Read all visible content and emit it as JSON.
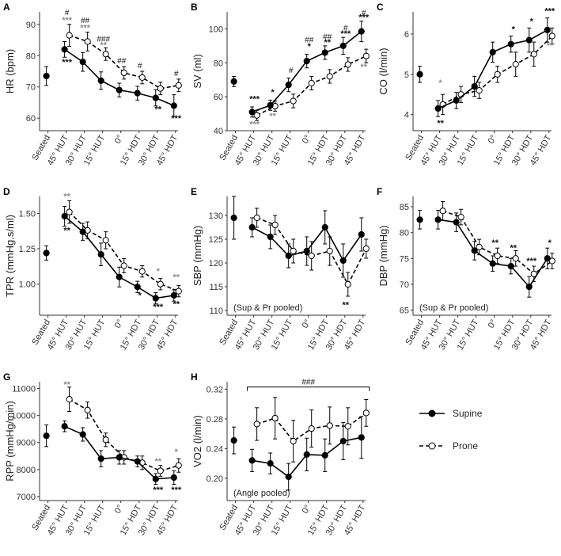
{
  "legend": {
    "supine": "Supine",
    "prone": "Prone"
  },
  "colors": {
    "supine": "#000000",
    "prone": "#ffffff",
    "line": "#000000",
    "grey_marker": "#8c8c8c"
  },
  "chart_data": [
    {
      "id": "A",
      "type": "line",
      "ylabel": "HR (bpm)",
      "categories": [
        "Seated",
        "45° HUT",
        "30° HUT",
        "15° HUT",
        "0°",
        "15° HDT",
        "30° HDT",
        "45° HDT"
      ],
      "ylim": [
        56,
        94
      ],
      "yticks": [
        60,
        70,
        80,
        90
      ],
      "series": [
        {
          "name": "Supine",
          "values": [
            73.5,
            82,
            78,
            72,
            69,
            68,
            66.5,
            64
          ],
          "err": [
            3,
            2.5,
            3,
            2.8,
            2.2,
            2.2,
            2.6,
            3.5
          ]
        },
        {
          "name": "Prone",
          "values": [
            null,
            86.5,
            84.5,
            80.5,
            74.5,
            73,
            69.5,
            70.5
          ],
          "err": [
            null,
            3.5,
            3,
            2,
            2,
            2,
            2,
            2
          ]
        }
      ],
      "annotations": [
        {
          "cat": 1,
          "text": "#",
          "kind": "hash",
          "value": 93
        },
        {
          "cat": 1,
          "text": "***",
          "kind": "grey",
          "value": 90.5
        },
        {
          "cat": 1,
          "text": "***",
          "kind": "black",
          "value": 77
        },
        {
          "cat": 2,
          "text": "##",
          "kind": "hash",
          "value": 90.5
        },
        {
          "cat": 2,
          "text": "***",
          "kind": "grey",
          "value": 88
        },
        {
          "cat": 3,
          "text": "###",
          "kind": "hash",
          "value": 84.5
        },
        {
          "cat": 3,
          "text": "**",
          "kind": "grey",
          "value": 82.5
        },
        {
          "cat": 4,
          "text": "##",
          "kind": "hash",
          "value": 77.5
        },
        {
          "cat": 5,
          "text": "#",
          "kind": "hash",
          "value": 76
        },
        {
          "cat": 6,
          "text": "**",
          "kind": "black",
          "value": 62
        },
        {
          "cat": 7,
          "text": "#",
          "kind": "hash",
          "value": 73.5
        },
        {
          "cat": 7,
          "text": "***",
          "kind": "black",
          "value": 59
        }
      ]
    },
    {
      "id": "B",
      "type": "line",
      "ylabel": "SV (ml)",
      "categories": [
        "Seated",
        "45° HUT",
        "30° HUT",
        "15° HUT",
        "0°",
        "15° HDT",
        "30° HDT",
        "45° HDT"
      ],
      "ylim": [
        40,
        110
      ],
      "yticks": [
        40,
        60,
        80,
        100
      ],
      "series": [
        {
          "name": "Supine",
          "values": [
            69,
            51,
            55,
            67,
            81,
            86,
            90,
            98.5
          ],
          "err": [
            3,
            3,
            3,
            4,
            4,
            4,
            5,
            6
          ]
        },
        {
          "name": "Prone",
          "values": [
            null,
            49,
            54.5,
            57.5,
            68,
            72,
            79,
            84
          ],
          "err": [
            null,
            3,
            3,
            4,
            4,
            4,
            4,
            4
          ]
        }
      ],
      "annotations": [
        {
          "cat": 1,
          "text": "***",
          "kind": "black",
          "value": 57
        },
        {
          "cat": 1,
          "text": "***",
          "kind": "grey",
          "value": 42
        },
        {
          "cat": 2,
          "text": "*",
          "kind": "black",
          "value": 61
        },
        {
          "cat": 2,
          "text": "**",
          "kind": "grey",
          "value": 47
        },
        {
          "cat": 3,
          "text": "#",
          "kind": "hash",
          "value": 74
        },
        {
          "cat": 4,
          "text": "##",
          "kind": "hash",
          "value": 92
        },
        {
          "cat": 4,
          "text": "*",
          "kind": "black",
          "value": 88
        },
        {
          "cat": 5,
          "text": "##",
          "kind": "hash",
          "value": 94
        },
        {
          "cat": 5,
          "text": "**",
          "kind": "black",
          "value": 90.5
        },
        {
          "cat": 6,
          "text": "#",
          "kind": "hash",
          "value": 99
        },
        {
          "cat": 6,
          "text": "***",
          "kind": "black",
          "value": 95.5
        },
        {
          "cat": 7,
          "text": "#",
          "kind": "hash",
          "value": 108
        },
        {
          "cat": 7,
          "text": "***",
          "kind": "black",
          "value": 105
        },
        {
          "cat": 7,
          "text": "**",
          "kind": "grey",
          "value": 76
        }
      ]
    },
    {
      "id": "C",
      "type": "line",
      "ylabel": "CO (l/min)",
      "categories": [
        "Seated",
        "45° HUT",
        "30° HUT",
        "15° HUT",
        "0°",
        "15° HDT",
        "30° HDT",
        "45° HDT"
      ],
      "ylim": [
        3.6,
        6.55
      ],
      "yticks": [
        4,
        5,
        6
      ],
      "series": [
        {
          "name": "Supine",
          "values": [
            5.0,
            4.15,
            4.35,
            4.7,
            5.55,
            5.75,
            5.85,
            6.1
          ],
          "err": [
            0.2,
            0.2,
            0.2,
            0.25,
            0.25,
            0.2,
            0.3,
            0.3
          ]
        },
        {
          "name": "Prone",
          "values": [
            null,
            4.25,
            4.5,
            4.6,
            5.0,
            5.25,
            5.5,
            5.95
          ],
          "err": [
            null,
            0.25,
            0.2,
            0.2,
            0.2,
            0.3,
            0.3,
            0.2
          ]
        }
      ],
      "annotations": [
        {
          "cat": 1,
          "text": "*",
          "kind": "grey",
          "value": 4.72
        },
        {
          "cat": 1,
          "text": "**",
          "kind": "black",
          "value": 3.72
        },
        {
          "cat": 5,
          "text": "*",
          "kind": "black",
          "value": 6.05
        },
        {
          "cat": 6,
          "text": "*",
          "kind": "black",
          "value": 6.25
        },
        {
          "cat": 7,
          "text": "***",
          "kind": "black",
          "value": 6.5
        },
        {
          "cat": 7,
          "text": "**",
          "kind": "grey",
          "value": 5.65
        }
      ]
    },
    {
      "id": "D",
      "type": "line",
      "ylabel": "TPR (mmHg.s/ml)",
      "categories": [
        "Seated",
        "45° HUT",
        "30° HUT",
        "15° HUT",
        "0°",
        "15° HDT",
        "30° HDT",
        "45° HDT"
      ],
      "ylim": [
        0.78,
        1.62
      ],
      "yticks": [
        1.0,
        1.25,
        1.5
      ],
      "yformat": 2,
      "series": [
        {
          "name": "Supine",
          "values": [
            1.22,
            1.48,
            1.37,
            1.21,
            1.05,
            0.98,
            0.9,
            0.92
          ],
          "err": [
            0.05,
            0.07,
            0.06,
            0.08,
            0.07,
            0.04,
            0.04,
            0.04
          ]
        },
        {
          "name": "Prone",
          "values": [
            null,
            1.51,
            1.38,
            1.31,
            1.13,
            1.09,
            1.0,
            0.95
          ],
          "err": [
            null,
            0.08,
            0.06,
            0.06,
            0.05,
            0.04,
            0.04,
            0.04
          ]
        }
      ],
      "annotations": [
        {
          "cat": 1,
          "text": "**",
          "kind": "grey",
          "value": 1.6
        },
        {
          "cat": 1,
          "text": "**",
          "kind": "black",
          "value": 1.36
        },
        {
          "cat": 5,
          "text": "*",
          "kind": "black",
          "value": 0.9
        },
        {
          "cat": 6,
          "text": "*",
          "kind": "grey",
          "value": 1.07
        },
        {
          "cat": 6,
          "text": "***",
          "kind": "black",
          "value": 0.82
        },
        {
          "cat": 7,
          "text": "**",
          "kind": "grey",
          "value": 1.03
        },
        {
          "cat": 7,
          "text": "**",
          "kind": "black",
          "value": 0.84
        }
      ]
    },
    {
      "id": "E",
      "type": "line",
      "ylabel": "SBP (mmHg)",
      "note": "(Sup & Pr pooled)",
      "categories": [
        "Seated",
        "45° HUT",
        "30° HUT",
        "15° HUT",
        "0°",
        "15° HDT",
        "30° HDT",
        "45° HDT"
      ],
      "ylim": [
        109,
        134
      ],
      "yticks": [
        110,
        115,
        120,
        125,
        130
      ],
      "series": [
        {
          "name": "Supine",
          "values": [
            129.5,
            127.5,
            125.5,
            121.5,
            122.5,
            127.5,
            120.5,
            126
          ],
          "err": [
            4.5,
            2,
            2.5,
            2.5,
            3,
            3.5,
            3.5,
            3.5
          ]
        },
        {
          "name": "Prone",
          "values": [
            null,
            129.5,
            128,
            122.5,
            121.5,
            122.5,
            115.5,
            123
          ],
          "err": [
            null,
            2,
            2,
            2.5,
            3,
            3,
            2.5,
            2
          ]
        }
      ],
      "annotations": [
        {
          "cat": 6,
          "text": "**",
          "kind": "black",
          "value": 110.6
        }
      ]
    },
    {
      "id": "F",
      "type": "line",
      "ylabel": "DBP (mmHg)",
      "note": "(Sup & Pr pooled)",
      "categories": [
        "Seated",
        "45° HUT",
        "30° HUT",
        "15° HUT",
        "0°",
        "15° HDT",
        "30° HDT",
        "45° HDT"
      ],
      "ylim": [
        64,
        87
      ],
      "yticks": [
        65,
        70,
        75,
        80,
        85
      ],
      "series": [
        {
          "name": "Supine",
          "values": [
            82.5,
            82.5,
            82,
            76.5,
            74,
            73.5,
            69.5,
            75
          ],
          "err": [
            1.8,
            1.8,
            1.8,
            1.8,
            1.5,
            1.5,
            2,
            2
          ]
        },
        {
          "name": "Prone",
          "values": [
            null,
            84.2,
            83,
            77.2,
            75.5,
            75,
            72,
            74.5
          ],
          "err": [
            null,
            1.8,
            1.5,
            1.5,
            1.5,
            1.5,
            1.5,
            1.5
          ]
        }
      ],
      "annotations": [
        {
          "cat": 4,
          "text": "**",
          "kind": "black",
          "value": 77.5
        },
        {
          "cat": 5,
          "text": "**",
          "kind": "black",
          "value": 76.5
        },
        {
          "cat": 6,
          "text": "***",
          "kind": "black",
          "value": 74
        },
        {
          "cat": 7,
          "text": "*",
          "kind": "black",
          "value": 77.5
        }
      ]
    },
    {
      "id": "G",
      "type": "line",
      "ylabel": "RPP (mmHg/min)",
      "categories": [
        "Seated",
        "45° HUT",
        "30° HUT",
        "15° HUT",
        "0°",
        "15° HDT",
        "30° HDT",
        "45° HDT"
      ],
      "ylim": [
        6850,
        11250
      ],
      "yticks": [
        7000,
        8000,
        9000,
        10000,
        11000
      ],
      "series": [
        {
          "name": "Supine",
          "values": [
            9250,
            9600,
            9300,
            8400,
            8450,
            8300,
            7650,
            7700
          ],
          "err": [
            400,
            200,
            250,
            300,
            250,
            200,
            200,
            250
          ]
        },
        {
          "name": "Prone",
          "values": [
            null,
            10600,
            10200,
            9100,
            8450,
            8250,
            7950,
            8150
          ],
          "err": [
            null,
            450,
            300,
            250,
            250,
            250,
            200,
            250
          ]
        }
      ],
      "annotations": [
        {
          "cat": 1,
          "text": "**",
          "kind": "grey",
          "value": 11050
        },
        {
          "cat": 6,
          "text": "**",
          "kind": "grey",
          "value": 8200
        },
        {
          "cat": 6,
          "text": "***",
          "kind": "black",
          "value": 7150
        },
        {
          "cat": 7,
          "text": "*",
          "kind": "grey",
          "value": 8550
        },
        {
          "cat": 7,
          "text": "***",
          "kind": "black",
          "value": 7150
        }
      ]
    },
    {
      "id": "H",
      "type": "line",
      "ylabel": "VO2 (l/min)",
      "note": "(Angle pooled)",
      "categories": [
        "Seated",
        "45° HUT",
        "30° HUT",
        "15° HUT",
        "0°",
        "15° HDT",
        "30° HDT",
        "45° HDT"
      ],
      "ylim": [
        0.17,
        0.33
      ],
      "yticks": [
        0.2,
        0.24,
        0.28,
        0.32
      ],
      "yformat": 2,
      "series": [
        {
          "name": "Supine",
          "values": [
            0.251,
            0.224,
            0.22,
            0.202,
            0.232,
            0.231,
            0.25,
            0.255
          ],
          "err": [
            0.018,
            0.015,
            0.014,
            0.018,
            0.022,
            0.022,
            0.025,
            0.028
          ]
        },
        {
          "name": "Prone",
          "values": [
            null,
            0.273,
            0.281,
            0.25,
            0.267,
            0.271,
            0.27,
            0.288
          ],
          "err": [
            null,
            0.022,
            0.028,
            0.028,
            0.025,
            0.025,
            0.025,
            0.018
          ]
        }
      ],
      "bracket": {
        "from": 1,
        "to": 7,
        "text": "###",
        "value": 0.323
      }
    }
  ]
}
